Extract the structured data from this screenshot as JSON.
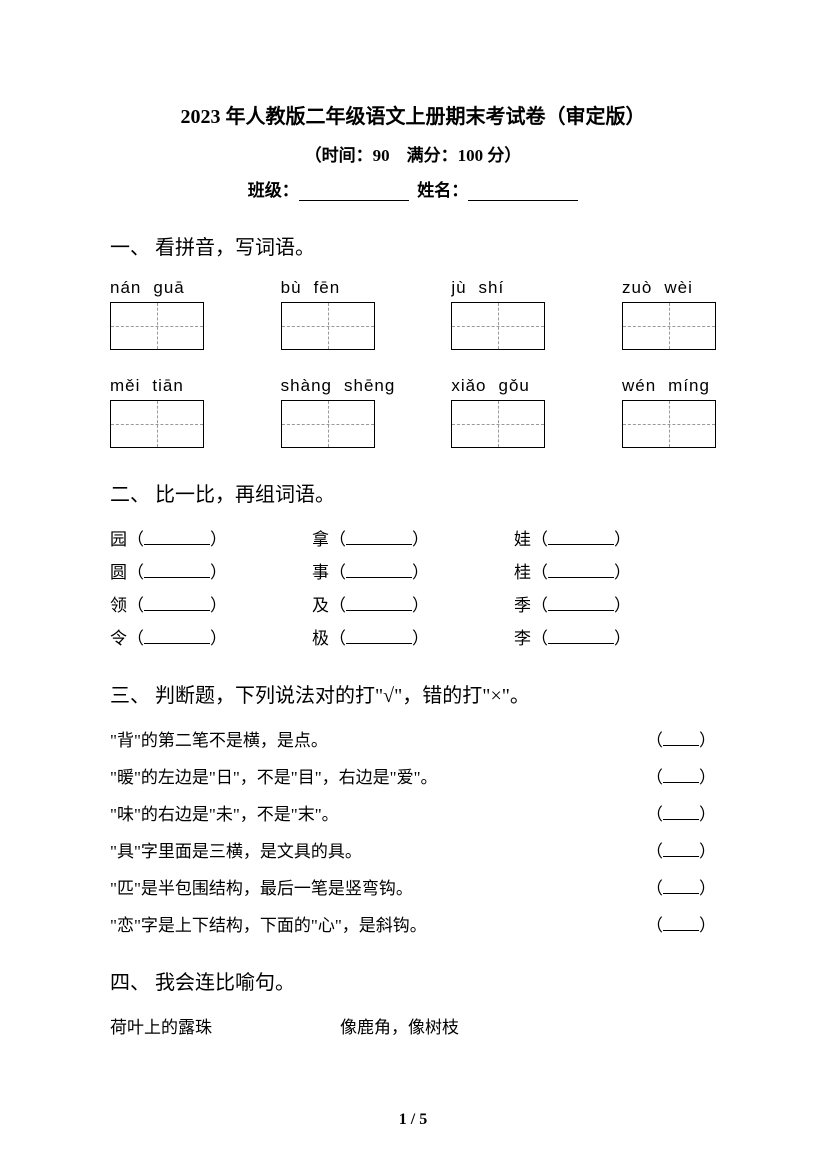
{
  "header": {
    "title": "2023 年人教版二年级语文上册期末考试卷（审定版）",
    "subtitle": "（时间：90　满分：100 分）",
    "class_label": "班级：",
    "name_label": "姓名："
  },
  "section1": {
    "title": "一、 看拼音，写词语。",
    "rows": [
      [
        {
          "p1": "nán",
          "p2": "guā"
        },
        {
          "p1": "bù",
          "p2": "fēn"
        },
        {
          "p1": "jù",
          "p2": "shí"
        },
        {
          "p1": "zuò",
          "p2": "wèi"
        }
      ],
      [
        {
          "p1": "měi",
          "p2": "tiān"
        },
        {
          "p1": "shàng",
          "p2": "shēng"
        },
        {
          "p1": "xiǎo",
          "p2": "gǒu"
        },
        {
          "p1": "wén",
          "p2": "míng"
        }
      ]
    ]
  },
  "section2": {
    "title": "二、 比一比，再组词语。",
    "rows": [
      {
        "a": "园",
        "b": "拿",
        "c": "娃"
      },
      {
        "a": "圆",
        "b": "事",
        "c": "桂"
      },
      {
        "a": "领",
        "b": "及",
        "c": "季"
      },
      {
        "a": "令",
        "b": "极",
        "c": "李"
      }
    ]
  },
  "section3": {
    "title": "三、 判断题，下列说法对的打\"√\"，错的打\"×\"。",
    "items": [
      "\"背\"的第二笔不是横，是点。",
      "\"暖\"的左边是\"日\"，不是\"目\"，右边是\"爱\"。",
      "\"味\"的右边是\"未\"，不是\"末\"。",
      "\"具\"字里面是三横，是文具的具。",
      "\"匹\"是半包围结构，最后一笔是竖弯钩。",
      "\"恋\"字是上下结构，下面的\"心\"，是斜钩。"
    ]
  },
  "section4": {
    "title": "四、 我会连比喻句。",
    "items": [
      {
        "left": "荷叶上的露珠",
        "right": "像鹿角，像树枝"
      }
    ]
  },
  "footer": {
    "page": "1 / 5"
  }
}
